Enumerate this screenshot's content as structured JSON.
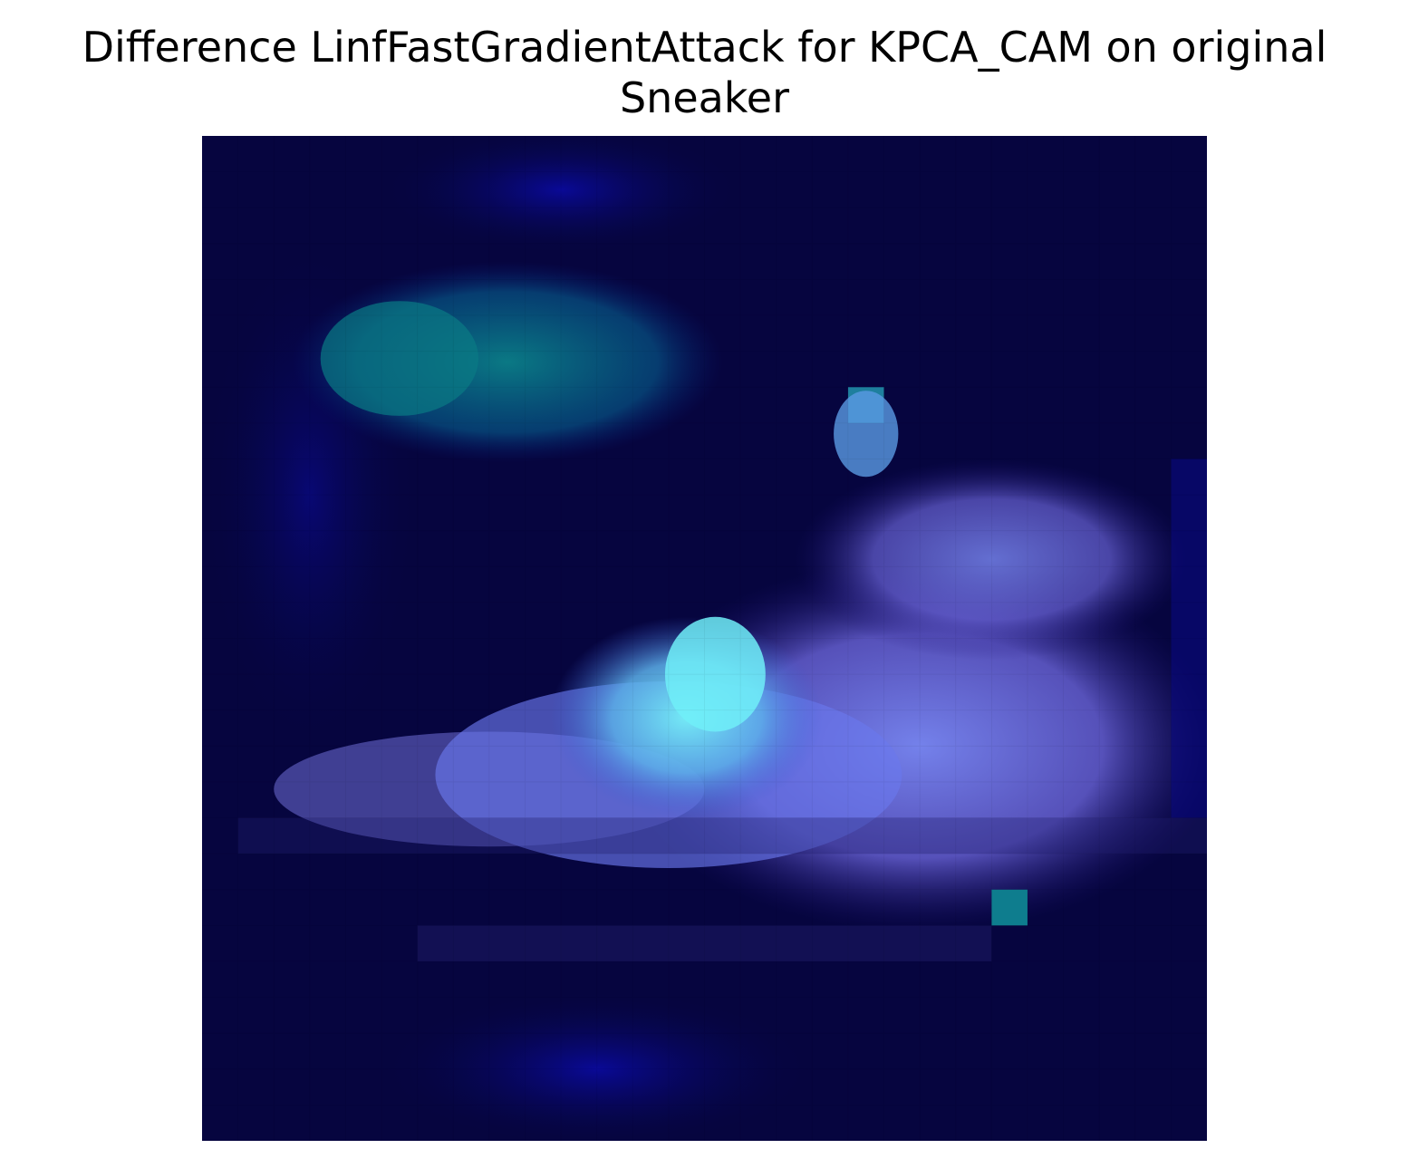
{
  "title": {
    "line1": "Difference LinfFastGradientAttack for KPCA_CAM on original",
    "line2": "Sneaker"
  },
  "image": {
    "description_colors": {
      "background": "#06053f",
      "teal": "#0a7a8a",
      "cyan": "#70e6f5",
      "violet": "#7a6ee8"
    }
  }
}
